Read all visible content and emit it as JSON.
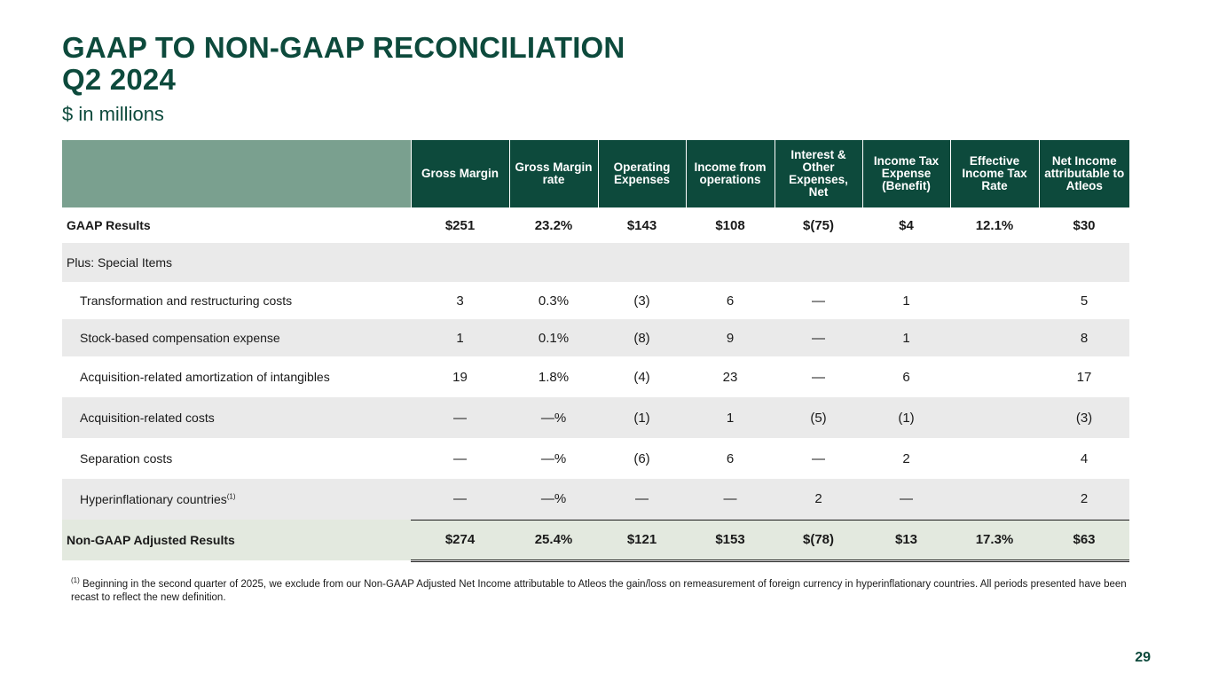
{
  "title_line1": "GAAP TO NON-GAAP RECONCILIATION",
  "title_line2": "Q2 2024",
  "subtitle": "$ in millions",
  "table": {
    "headers": [
      "Gross Margin",
      "Gross Margin rate",
      "Operating Expenses",
      "Income from operations",
      "Interest & Other Expenses, Net",
      "Income Tax Expense (Benefit)",
      "Effective Income Tax Rate",
      "Net Income attributable to Atleos"
    ],
    "gaap": {
      "label": "GAAP Results",
      "values": [
        "$251",
        "23.2%",
        "$143",
        "$108",
        "$(75)",
        "$4",
        "12.1%",
        "$30"
      ]
    },
    "plus_label": "Plus: Special Items",
    "items": [
      {
        "label": "Transformation and restructuring costs",
        "values": [
          "3",
          "0.3%",
          "(3)",
          "6",
          "—",
          "1",
          "",
          "5"
        ]
      },
      {
        "label": "Stock-based compensation expense",
        "values": [
          "1",
          "0.1%",
          "(8)",
          "9",
          "—",
          "1",
          "",
          "8"
        ]
      },
      {
        "label": "Acquisition-related amortization of intangibles",
        "values": [
          "19",
          "1.8%",
          "(4)",
          "23",
          "—",
          "6",
          "",
          "17"
        ]
      },
      {
        "label": "Acquisition-related costs",
        "values": [
          "—",
          "—%",
          "(1)",
          "1",
          "(5)",
          "(1)",
          "",
          "(3)"
        ]
      },
      {
        "label": "Separation costs",
        "values": [
          "—",
          "—%",
          "(6)",
          "6",
          "—",
          "2",
          "",
          "4"
        ]
      },
      {
        "label": "Hyperinflationary countries",
        "sup": "(1)",
        "values": [
          "—",
          "—%",
          "—",
          "—",
          "2",
          "—",
          "",
          "2"
        ]
      }
    ],
    "total": {
      "label": "Non-GAAP Adjusted Results",
      "values": [
        "$274",
        "25.4%",
        "$121",
        "$153",
        "$(78)",
        "$13",
        "17.3%",
        "$63"
      ]
    }
  },
  "footnote": {
    "marker": "(1)",
    "text": " Beginning in the second quarter of 2025, we exclude from our Non-GAAP Adjusted Net Income attributable to Atleos the gain/loss on remeasurement of foreign currency in hyperinflationary countries. All periods presented have been recast to reflect the new definition."
  },
  "page_number": "29",
  "colors": {
    "brand_green": "#0d4a3c",
    "header_corner": "#7aa08f",
    "row_shade": "#eaeaea",
    "total_row": "#e3e9df"
  }
}
